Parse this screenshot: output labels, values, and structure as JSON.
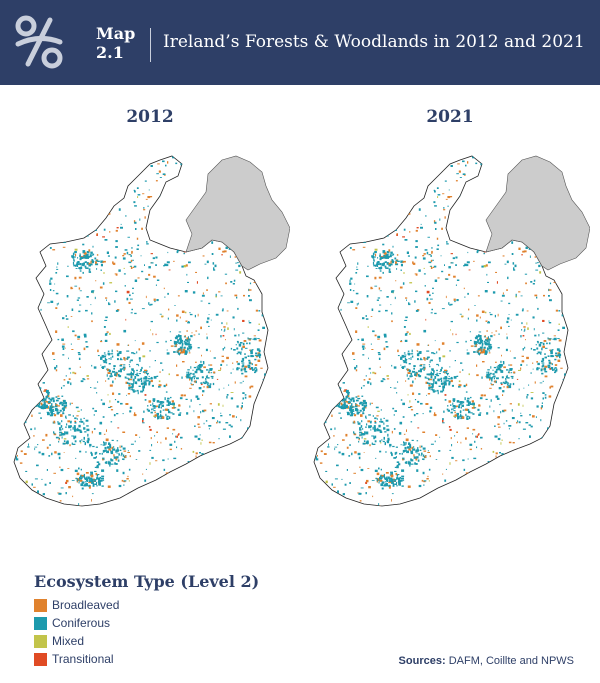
{
  "header": {
    "map_label": "Map",
    "map_number": "2.1",
    "title": "Ireland’s Forests & Woodlands in 2012 and 2021",
    "logo_icon": "link-percent-logo-icon"
  },
  "maps": [
    {
      "year": "2012"
    },
    {
      "year": "2021"
    }
  ],
  "legend": {
    "title": "Ecosystem Type (Level 2)",
    "items": [
      {
        "label": "Broadleaved",
        "color": "#e0822e"
      },
      {
        "label": "Coniferous",
        "color": "#1d9aad"
      },
      {
        "label": "Mixed",
        "color": "#c2c44a"
      },
      {
        "label": "Transitional",
        "color": "#e04b24"
      }
    ]
  },
  "colors": {
    "header_bg": "#2e3f67",
    "northern_ireland": "#cccccc",
    "outline": "#222222"
  },
  "sources": {
    "label": "Sources:",
    "text": "DAFM, Coillte and NPWS"
  }
}
